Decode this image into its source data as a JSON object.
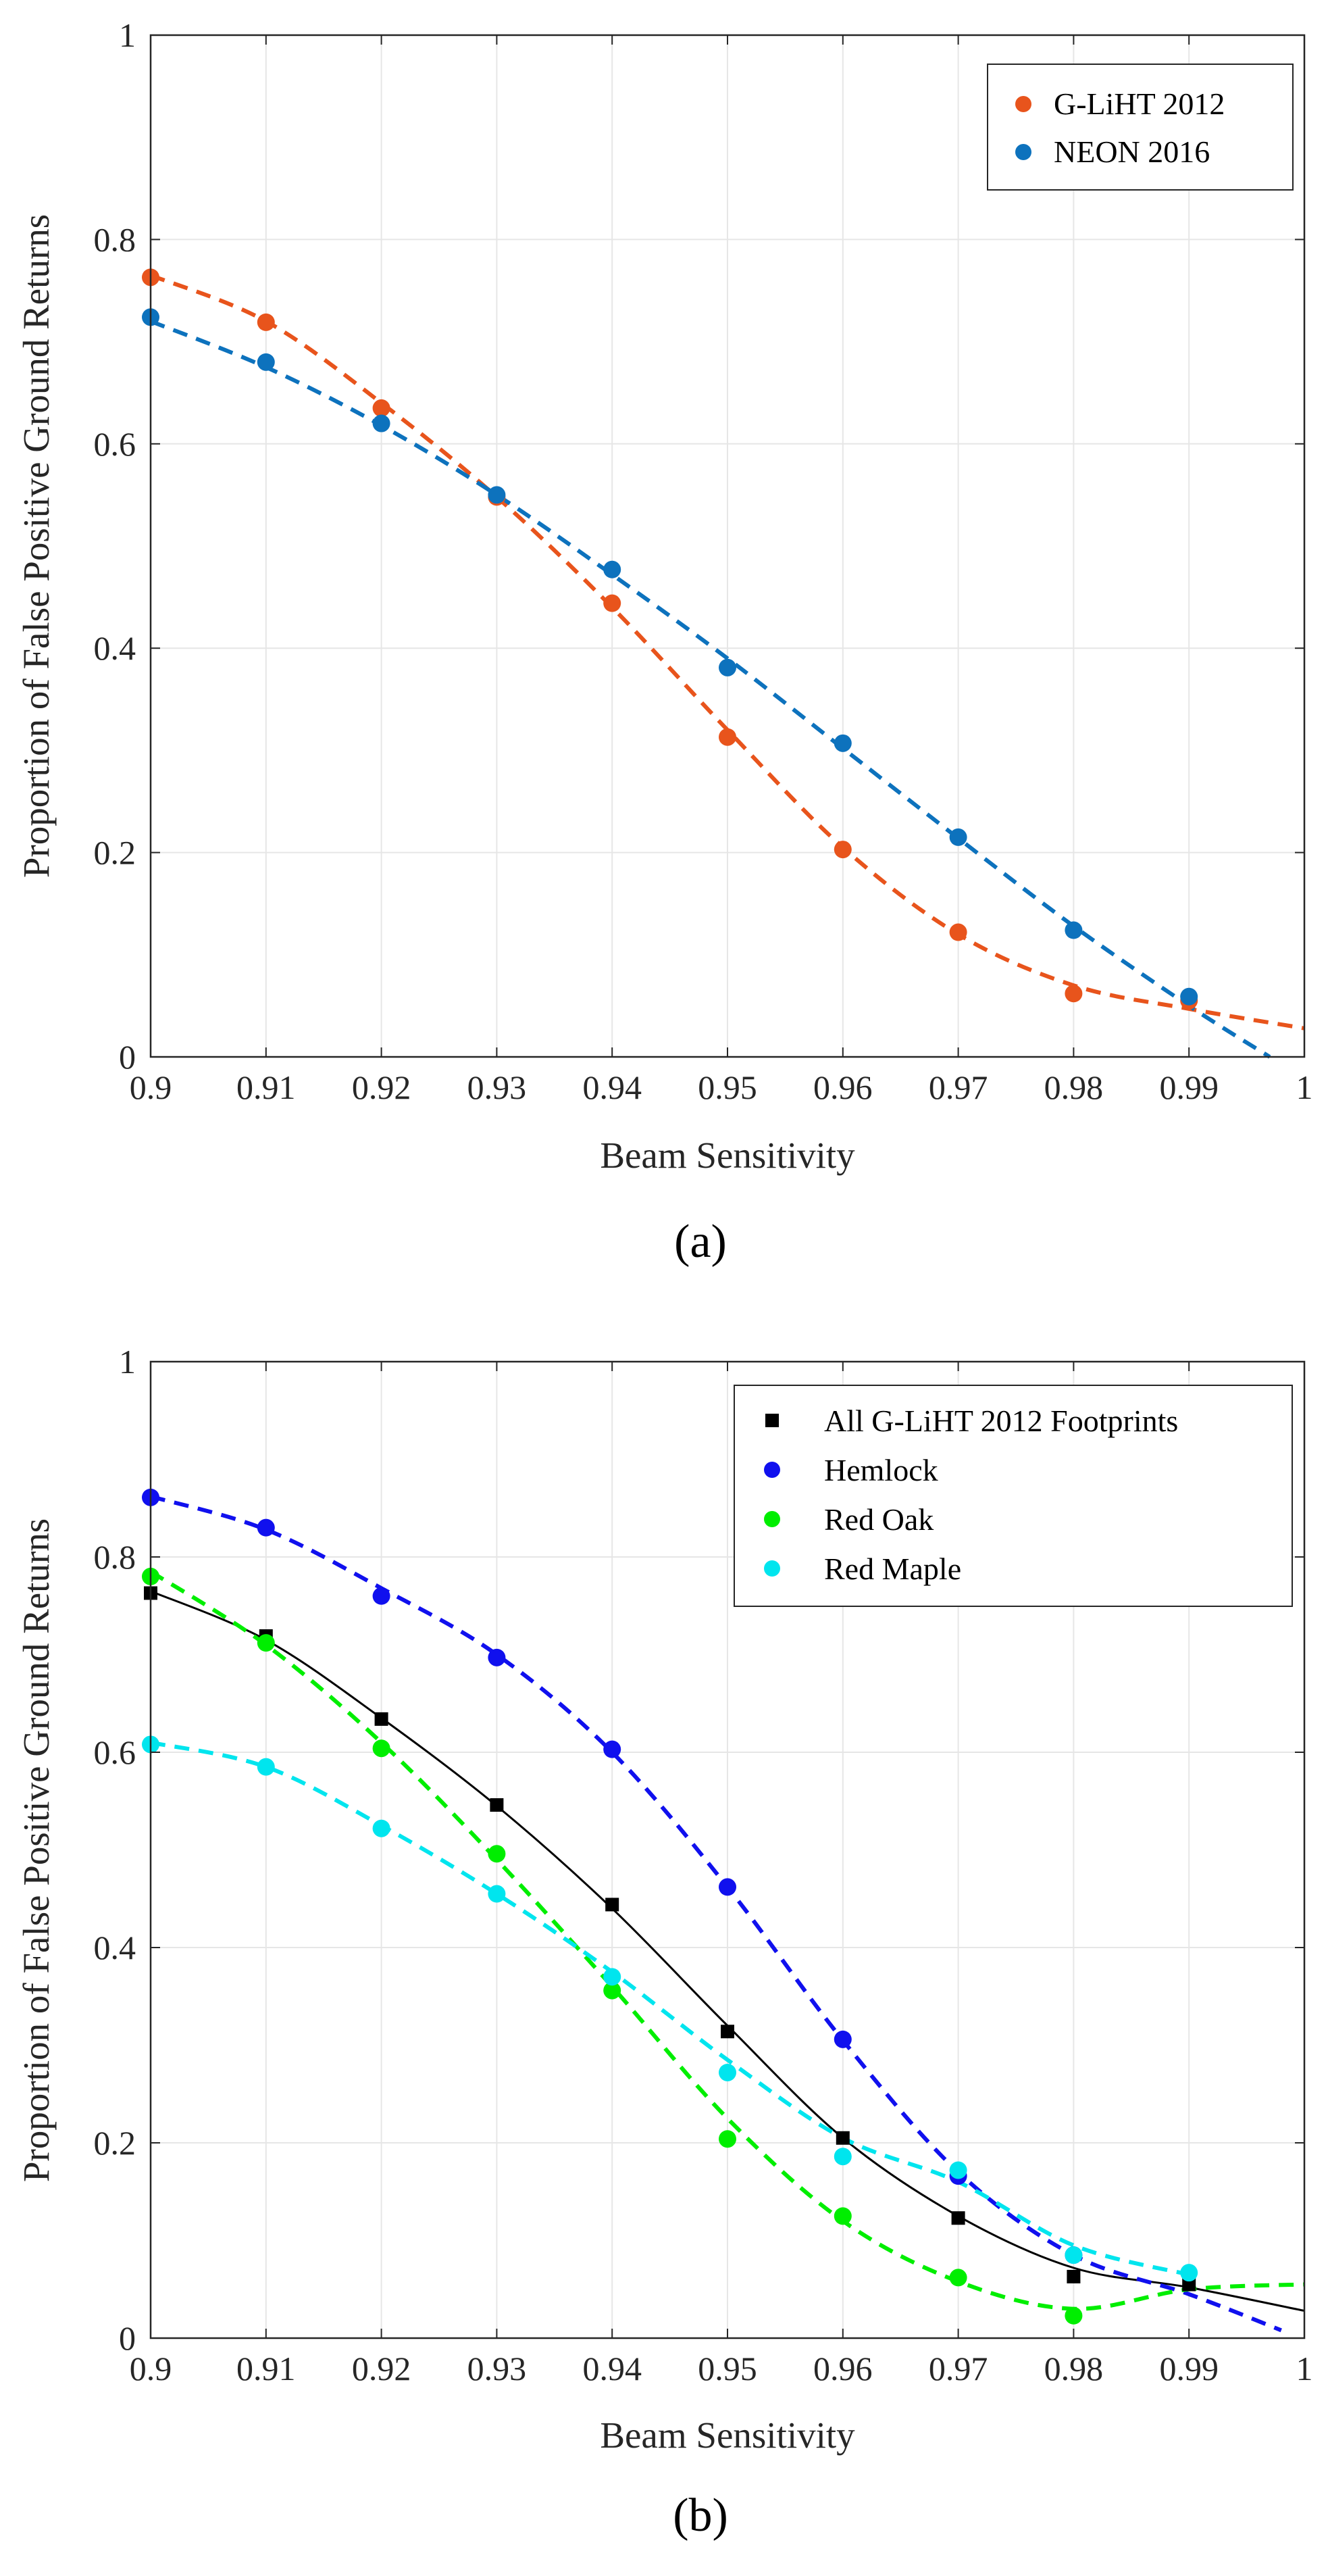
{
  "chart_data": [
    {
      "type": "scatter",
      "caption": "(a)",
      "xlabel": "Beam Sensitivity",
      "ylabel": "Proportion of False Positive Ground Returns",
      "xlim": [
        0.9,
        1.0
      ],
      "ylim": [
        0,
        1
      ],
      "grid": true,
      "legend_position": "top-right",
      "xticks": [
        0.9,
        0.91,
        0.92,
        0.93,
        0.94,
        0.95,
        0.96,
        0.97,
        0.98,
        0.99,
        1
      ],
      "xtick_labels": [
        "0.9",
        "0.91",
        "0.92",
        "0.93",
        "0.94",
        "0.95",
        "0.96",
        "0.97",
        "0.98",
        "0.99",
        "1"
      ],
      "yticks": [
        0,
        0.2,
        0.4,
        0.6,
        0.8,
        1
      ],
      "ytick_labels": [
        "0",
        "0.2",
        "0.4",
        "0.6",
        "0.8",
        "1"
      ],
      "series": [
        {
          "name": "G-LiHT 2012",
          "color": "#e8541c",
          "marker": "circle",
          "fit_style": "dashed",
          "x": [
            0.9,
            0.91,
            0.92,
            0.93,
            0.94,
            0.95,
            0.96,
            0.97,
            0.98,
            0.99
          ],
          "y": [
            0.763,
            0.719,
            0.635,
            0.548,
            0.444,
            0.313,
            0.203,
            0.122,
            0.062,
            0.055
          ],
          "fit_x": [
            0.9,
            0.91,
            0.92,
            0.93,
            0.94,
            0.95,
            0.96,
            0.97,
            0.98,
            0.99,
            1.0
          ],
          "fit_y": [
            0.765,
            0.72,
            0.64,
            0.548,
            0.44,
            0.32,
            0.205,
            0.12,
            0.07,
            0.047,
            0.028
          ]
        },
        {
          "name": "NEON 2016",
          "color": "#0d72bd",
          "marker": "circle",
          "fit_style": "dashed",
          "x": [
            0.9,
            0.91,
            0.92,
            0.93,
            0.94,
            0.95,
            0.96,
            0.97,
            0.98,
            0.99
          ],
          "y": [
            0.724,
            0.68,
            0.62,
            0.55,
            0.477,
            0.381,
            0.307,
            0.215,
            0.124,
            0.059
          ],
          "fit_x": [
            0.9,
            0.91,
            0.92,
            0.93,
            0.94,
            0.95,
            0.96,
            0.97,
            0.98,
            0.99,
            0.997
          ],
          "fit_y": [
            0.72,
            0.675,
            0.618,
            0.55,
            0.472,
            0.39,
            0.302,
            0.214,
            0.128,
            0.05,
            0.0
          ]
        }
      ]
    },
    {
      "type": "scatter",
      "caption": "(b)",
      "xlabel": "Beam Sensitivity",
      "ylabel": "Proportion of False Positive Ground Returns",
      "xlim": [
        0.9,
        1.0
      ],
      "ylim": [
        0,
        1
      ],
      "grid": true,
      "legend_position": "top-right",
      "xticks": [
        0.9,
        0.91,
        0.92,
        0.93,
        0.94,
        0.95,
        0.96,
        0.97,
        0.98,
        0.99,
        1
      ],
      "xtick_labels": [
        "0.9",
        "0.91",
        "0.92",
        "0.93",
        "0.94",
        "0.95",
        "0.96",
        "0.97",
        "0.98",
        "0.99",
        "1"
      ],
      "yticks": [
        0,
        0.2,
        0.4,
        0.6,
        0.8,
        1
      ],
      "ytick_labels": [
        "0",
        "0.2",
        "0.4",
        "0.6",
        "0.8",
        "1"
      ],
      "series": [
        {
          "name": "All G-LiHT 2012 Footprints",
          "color": "#000000",
          "marker": "square",
          "fit_style": "solid",
          "x": [
            0.9,
            0.91,
            0.92,
            0.93,
            0.94,
            0.95,
            0.96,
            0.97,
            0.98,
            0.99
          ],
          "y": [
            0.763,
            0.719,
            0.634,
            0.546,
            0.444,
            0.314,
            0.205,
            0.123,
            0.063,
            0.055
          ],
          "fit_x": [
            0.9,
            0.91,
            0.92,
            0.93,
            0.94,
            0.95,
            0.96,
            0.97,
            0.98,
            0.99,
            1.0
          ],
          "fit_y": [
            0.765,
            0.715,
            0.635,
            0.545,
            0.44,
            0.32,
            0.205,
            0.125,
            0.072,
            0.052,
            0.028
          ]
        },
        {
          "name": "Hemlock",
          "color": "#1010ee",
          "marker": "circle",
          "fit_style": "dashed",
          "x": [
            0.9,
            0.91,
            0.92,
            0.93,
            0.94,
            0.95,
            0.96,
            0.97,
            0.98
          ],
          "y": [
            0.861,
            0.83,
            0.76,
            0.697,
            0.603,
            0.462,
            0.306,
            0.166,
            0.085
          ],
          "fit_x": [
            0.9,
            0.91,
            0.92,
            0.93,
            0.94,
            0.95,
            0.96,
            0.97,
            0.98,
            0.99,
            0.998
          ],
          "fit_y": [
            0.862,
            0.828,
            0.768,
            0.7,
            0.6,
            0.462,
            0.305,
            0.17,
            0.085,
            0.045,
            0.008
          ]
        },
        {
          "name": "Red Oak",
          "color": "#00ee00",
          "marker": "circle",
          "fit_style": "dashed",
          "x": [
            0.9,
            0.91,
            0.92,
            0.93,
            0.94,
            0.95,
            0.96,
            0.97,
            0.98
          ],
          "y": [
            0.78,
            0.712,
            0.604,
            0.496,
            0.356,
            0.204,
            0.125,
            0.062,
            0.023
          ],
          "fit_x": [
            0.9,
            0.91,
            0.92,
            0.93,
            0.94,
            0.95,
            0.96,
            0.97,
            0.98,
            0.99,
            1.0
          ],
          "fit_y": [
            0.785,
            0.71,
            0.61,
            0.49,
            0.36,
            0.225,
            0.12,
            0.058,
            0.03,
            0.05,
            0.055
          ]
        },
        {
          "name": "Red Maple",
          "color": "#00e5ee",
          "marker": "circle",
          "fit_style": "dashed",
          "x": [
            0.9,
            0.91,
            0.92,
            0.93,
            0.94,
            0.95,
            0.96,
            0.97,
            0.98,
            0.99
          ],
          "y": [
            0.608,
            0.585,
            0.522,
            0.455,
            0.37,
            0.272,
            0.186,
            0.172,
            0.085,
            0.067
          ],
          "fit_x": [
            0.9,
            0.91,
            0.92,
            0.93,
            0.94,
            0.95,
            0.96,
            0.97,
            0.98,
            0.99
          ],
          "fit_y": [
            0.61,
            0.585,
            0.525,
            0.455,
            0.375,
            0.285,
            0.205,
            0.16,
            0.095,
            0.065
          ]
        }
      ]
    }
  ]
}
